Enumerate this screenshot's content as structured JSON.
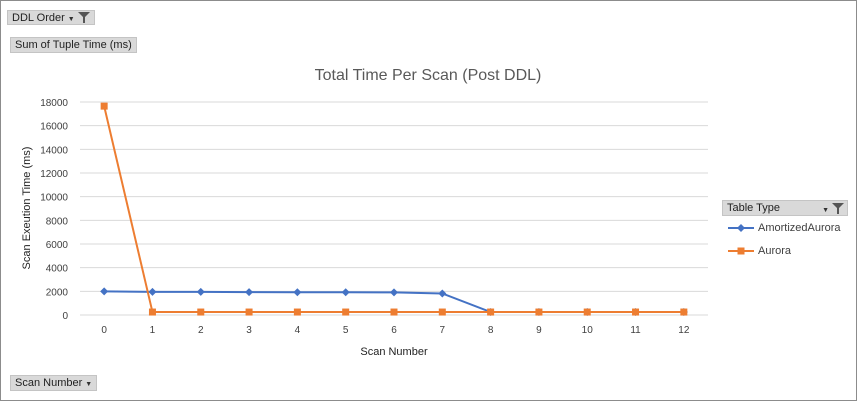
{
  "pivot": {
    "filter_label": "DDL Order",
    "value_label": "Sum of Tuple Time  (ms)",
    "axis_label": "Scan Number",
    "legend_field": "Table Type"
  },
  "colors": {
    "amortized": "#4472c4",
    "aurora": "#ed7d31",
    "grid": "#d9d9d9",
    "button_bg": "#d9d9d9"
  },
  "icons": [
    "dropdown-arrow-icon",
    "filter-funnel-icon"
  ],
  "chart_data": {
    "type": "line",
    "title": "Total Time Per Scan (Post DDL)",
    "xlabel": "Scan Number",
    "ylabel": "Scan Exeution Time (ms)",
    "x": [
      0,
      1,
      2,
      3,
      4,
      5,
      6,
      7,
      8,
      9,
      10,
      11,
      12
    ],
    "ylim": [
      0,
      18000
    ],
    "yticks": [
      0,
      2000,
      4000,
      6000,
      8000,
      10000,
      12000,
      14000,
      16000,
      18000
    ],
    "grid": true,
    "legend_position": "right",
    "series": [
      {
        "name": "AmortizedAurora",
        "marker": "diamond",
        "values": [
          2000,
          1950,
          1950,
          1930,
          1920,
          1920,
          1910,
          1820,
          250,
          250,
          250,
          250,
          250
        ]
      },
      {
        "name": "Aurora",
        "marker": "square",
        "values": [
          17650,
          250,
          250,
          250,
          250,
          250,
          250,
          250,
          250,
          250,
          250,
          250,
          250
        ]
      }
    ]
  }
}
